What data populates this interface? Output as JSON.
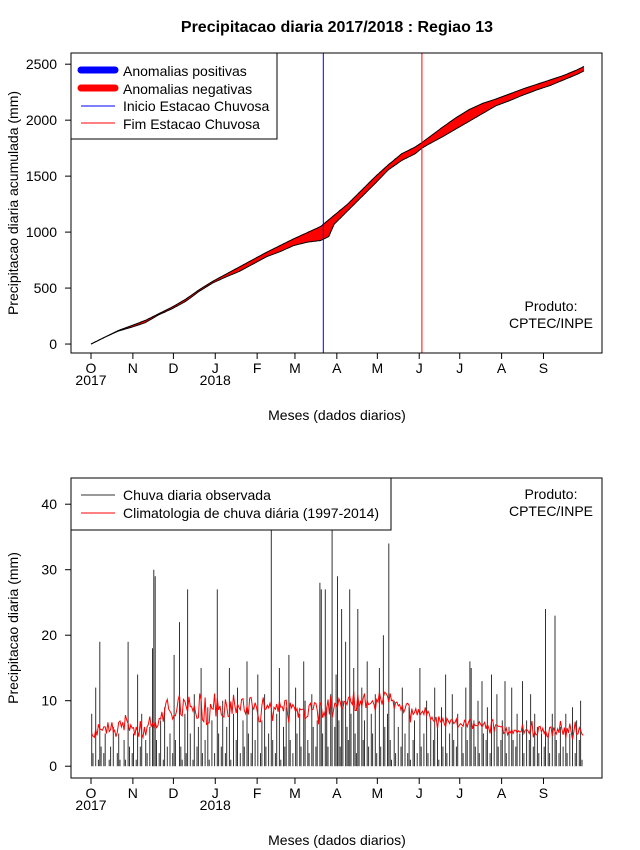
{
  "chart_data": [
    {
      "type": "area",
      "title": "Precipitacao diaria 2017/2018 : Regiao 13",
      "xlabel": "Meses (dados diarios)",
      "ylabel": "Precipitacao diaria acumulada (mm)",
      "x_tick_labels": [
        "O",
        "N",
        "D",
        "J",
        "F",
        "M",
        "A",
        "M",
        "J",
        "J",
        "A",
        "S"
      ],
      "year_labels": [
        "2017",
        "2018"
      ],
      "y_ticks": [
        0,
        500,
        1000,
        1500,
        2000,
        2500
      ],
      "ylim": [
        -80,
        2600
      ],
      "days_total": 365,
      "month_start_days": [
        0,
        31,
        61,
        92,
        123,
        151,
        182,
        212,
        243,
        273,
        304,
        335
      ],
      "legend": [
        {
          "label": "Anomalias positivas",
          "color": "#0000ff",
          "kind": "thick"
        },
        {
          "label": "Anomalias negativas",
          "color": "#ff0000",
          "kind": "thick"
        },
        {
          "label": "Inicio Estacao Chuvosa",
          "color": "#0000ff",
          "kind": "thin"
        },
        {
          "label": "Fim Estacao Chuvosa",
          "color": "#ff0000",
          "kind": "thin"
        }
      ],
      "rainy_season_start_day": 172,
      "rainy_season_end_day": 245,
      "series_day": [
        0,
        10,
        20,
        30,
        40,
        50,
        60,
        70,
        80,
        90,
        100,
        110,
        120,
        130,
        140,
        150,
        160,
        170,
        176,
        180,
        190,
        200,
        210,
        220,
        230,
        240,
        245,
        250,
        260,
        270,
        280,
        290,
        300,
        310,
        320,
        330,
        340,
        350,
        360,
        365
      ],
      "observed_accumulated_mm": [
        0,
        60,
        115,
        150,
        190,
        260,
        315,
        380,
        470,
        545,
        600,
        650,
        715,
        780,
        825,
        880,
        910,
        925,
        960,
        1070,
        1190,
        1310,
        1430,
        1555,
        1640,
        1700,
        1750,
        1785,
        1850,
        1920,
        1990,
        2060,
        2130,
        2175,
        2225,
        2270,
        2310,
        2360,
        2410,
        2440
      ],
      "climatology_accumulated_mm": [
        0,
        60,
        120,
        165,
        210,
        270,
        330,
        400,
        485,
        560,
        625,
        690,
        755,
        820,
        880,
        940,
        995,
        1050,
        1110,
        1150,
        1250,
        1370,
        1490,
        1600,
        1700,
        1760,
        1800,
        1845,
        1935,
        2020,
        2095,
        2150,
        2190,
        2235,
        2280,
        2320,
        2360,
        2400,
        2450,
        2480
      ],
      "producer": [
        "Produto:",
        "CPTEC/INPE"
      ]
    },
    {
      "type": "bar",
      "title": "",
      "xlabel": "Meses (dados diarios)",
      "ylabel": "Precipitacao diaria (mm)",
      "x_tick_labels": [
        "O",
        "N",
        "D",
        "J",
        "F",
        "M",
        "A",
        "M",
        "J",
        "J",
        "A",
        "S"
      ],
      "year_labels": [
        "2017",
        "2018"
      ],
      "y_ticks": [
        0,
        10,
        20,
        30,
        40
      ],
      "ylim": [
        -1.8,
        44
      ],
      "days_total": 365,
      "month_start_days": [
        0,
        31,
        61,
        92,
        123,
        151,
        182,
        212,
        243,
        273,
        304,
        335
      ],
      "legend": [
        {
          "label": "Chuva diaria observada",
          "color": "#000000",
          "kind": "thin"
        },
        {
          "label": "Climatologia de chuva diária (1997-2014)",
          "color": "#ff0000",
          "kind": "thin"
        }
      ],
      "observed_daily_mm": [
        8,
        2,
        0,
        12,
        0,
        1,
        19,
        3,
        0,
        2,
        5,
        0,
        0,
        1,
        3,
        0,
        6,
        0,
        0,
        2,
        5,
        1,
        0,
        0,
        4,
        1,
        0,
        19,
        3,
        0,
        2,
        5,
        0,
        1,
        14,
        0,
        3,
        8,
        0,
        0,
        4,
        2,
        0,
        6,
        0,
        18,
        30,
        29,
        4,
        0,
        2,
        7,
        0,
        1,
        9,
        0,
        3,
        0,
        5,
        0,
        2,
        17,
        4,
        0,
        0,
        22,
        3,
        1,
        0,
        8,
        2,
        27,
        0,
        5,
        0,
        1,
        11,
        0,
        3,
        6,
        0,
        15,
        2,
        0,
        4,
        0,
        9,
        1,
        0,
        7,
        0,
        2,
        0,
        27,
        5,
        0,
        3,
        10,
        0,
        2,
        6,
        0,
        15,
        1,
        0,
        8,
        0,
        4,
        12,
        0,
        2,
        0,
        7,
        3,
        0,
        16,
        5,
        0,
        2,
        9,
        0,
        4,
        0,
        14,
        0,
        2,
        7,
        0,
        11,
        3,
        0,
        5,
        0,
        36,
        4,
        0,
        2,
        8,
        0,
        15,
        1,
        0,
        6,
        3,
        9,
        0,
        17,
        4,
        0,
        2,
        0,
        12,
        5,
        0,
        8,
        3,
        0,
        16,
        10,
        0,
        4,
        2,
        0,
        11,
        6,
        0,
        3,
        7,
        0,
        28,
        27,
        5,
        0,
        27,
        9,
        3,
        0,
        11,
        36,
        0,
        6,
        14,
        29,
        7,
        3,
        24,
        10,
        0,
        19,
        6,
        4,
        27,
        8,
        0,
        15,
        5,
        2,
        24,
        9,
        0,
        12,
        4,
        7,
        0,
        16,
        3,
        0,
        8,
        5,
        0,
        11,
        2,
        0,
        15,
        3,
        0,
        20,
        6,
        0,
        8,
        34,
        4,
        1,
        0,
        10,
        2,
        0,
        6,
        0,
        3,
        12,
        0,
        5,
        0,
        2,
        9,
        1,
        0,
        4,
        7,
        0,
        2,
        0,
        15,
        3,
        0,
        5,
        0,
        10,
        2,
        0,
        7,
        0,
        4,
        12,
        0,
        6,
        1,
        0,
        9,
        3,
        0,
        14,
        2,
        0,
        5,
        0,
        11,
        4,
        0,
        3,
        8,
        0,
        0,
        6,
        2,
        0,
        12,
        4,
        0,
        16,
        15,
        0,
        7,
        3,
        0,
        10,
        2,
        0,
        13,
        5,
        0,
        4,
        9,
        0,
        2,
        14,
        0,
        6,
        0,
        11,
        3,
        0,
        4,
        7,
        0,
        13,
        2,
        0,
        6,
        0,
        12,
        4,
        0,
        3,
        8,
        0,
        5,
        0,
        13,
        2,
        0,
        7,
        0,
        4,
        11,
        0,
        3,
        8,
        0,
        6,
        2,
        0,
        5,
        0,
        3,
        24,
        0,
        5,
        2,
        0,
        8,
        0,
        23,
        4,
        0,
        2,
        6,
        0,
        3,
        0,
        8,
        2,
        0,
        5,
        0,
        9,
        0,
        2,
        7,
        0,
        4,
        10,
        1,
        0
      ],
      "climatology_daily_mm": [
        5.0,
        4.6,
        4.4,
        5.6,
        4.7,
        6.4,
        5.7,
        5.6,
        5.5,
        6.0,
        6.0,
        5.0,
        6.7,
        5.3,
        5.6,
        6.7,
        5.2,
        5.5,
        4.5,
        5.2,
        6.7,
        6.9,
        6.0,
        6.7,
        5.5,
        7.8,
        7.0,
        6.5,
        5.4,
        6.3,
        5.8,
        5.9,
        4.7,
        6.0,
        5.3,
        4.5,
        6.9,
        4.9,
        4.4,
        6.0,
        4.7,
        6.0,
        6.4,
        7.6,
        6.1,
        6.5,
        5.8,
        6.8,
        5.9,
        6.2,
        7.3,
        7.2,
        8.3,
        6.8,
        8.5,
        9.7,
        10.2,
        8.7,
        8.4,
        8.0,
        7.2,
        7.8,
        7.7,
        8.6,
        10.1,
        10.9,
        7.9,
        7.7,
        10.2,
        9.9,
        9.1,
        8.3,
        10.6,
        9.1,
        9.1,
        8.4,
        9.2,
        8.1,
        7.3,
        7.4,
        11.1,
        10.1,
        7.1,
        6.8,
        10.5,
        6.4,
        6.6,
        6.6,
        9.5,
        8.8,
        8.7,
        11.1,
        7.6,
        10.4,
        8.6,
        9.2,
        7.9,
        7.6,
        7.5,
        10.2,
        9.2,
        7.6,
        7.6,
        9.9,
        8.0,
        10.9,
        9.3,
        8.1,
        9.5,
        9.0,
        8.6,
        10.2,
        10.3,
        8.5,
        8.0,
        9.2,
        7.9,
        10.4,
        10.5,
        9.1,
        8.7,
        9.7,
        9.0,
        7.9,
        6.8,
        6.8,
        9.3,
        10.5,
        8.7,
        8.7,
        9.3,
        8.9,
        9.6,
        8.8,
        6.9,
        9.0,
        8.7,
        9.5,
        8.3,
        9.9,
        9.0,
        9.1,
        8.4,
        10.0,
        10.1,
        8.0,
        6.6,
        9.7,
        8.9,
        9.4,
        9.0,
        8.3,
        8.8,
        7.4,
        8.8,
        8.6,
        8.7,
        8.7,
        7.2,
        7.5,
        7.6,
        9.3,
        9.6,
        8.6,
        8.7,
        9.7,
        9.6,
        8.6,
        6.4,
        9.8,
        9.3,
        7.4,
        8.2,
        7.5,
        8.7,
        10.2,
        7.9,
        10.7,
        7.4,
        8.4,
        9.6,
        9.5,
        9.0,
        10.3,
        9.8,
        8.8,
        8.9,
        9.9,
        9.9,
        9.4,
        10.4,
        10.7,
        9.8,
        9.4,
        11.4,
        8.5,
        8.5,
        10.9,
        9.0,
        10.0,
        9.1,
        10.4,
        11.1,
        8.9,
        10.0,
        9.4,
        9.5,
        9.7,
        10.0,
        9.4,
        8.5,
        10.2,
        9.8,
        11.3,
        10.3,
        9.4,
        10.6,
        11.3,
        11.1,
        10.7,
        9.8,
        11.1,
        10.0,
        10.1,
        8.8,
        9.7,
        9.8,
        9.2,
        9.4,
        8.6,
        9.3,
        8.2,
        8.7,
        9.5,
        9.6,
        9.3,
        6.7,
        8.8,
        7.9,
        8.2,
        8.8,
        7.8,
        8.7,
        7.8,
        8.1,
        8.4,
        7.9,
        9.0,
        7.8,
        8.4,
        8.0,
        7.1,
        7.5,
        6.9,
        6.9,
        7.5,
        5.7,
        7.6,
        6.9,
        6.6,
        7.3,
        6.5,
        6.0,
        7.3,
        6.9,
        6.5,
        7.1,
        7.1,
        6.5,
        6.7,
        7.2,
        5.9,
        6.2,
        6.5,
        6.3,
        6.1,
        7.0,
        6.7,
        6.0,
        6.7,
        7.2,
        7.0,
        5.7,
        6.5,
        6.2,
        6.2,
        6.2,
        6.8,
        6.4,
        6.0,
        6.4,
        6.7,
        5.7,
        6.4,
        5.8,
        5.0,
        6.9,
        7.1,
        5.3,
        6.3,
        6.3,
        6.1,
        6.1,
        6.0,
        6.1,
        5.0,
        5.2,
        5.8,
        4.8,
        5.3,
        5.1,
        5.6,
        5.0,
        5.5,
        5.5,
        5.1,
        5.4,
        5.2,
        5.3,
        6.4,
        5.0,
        5.5,
        5.6,
        5.4,
        5.0,
        5.8,
        6.9,
        4.4,
        5.3,
        4.8,
        4.8,
        6.0,
        6.1,
        5.2,
        5.8,
        5.0,
        5.5,
        4.6,
        4.4,
        5.9,
        6.0,
        4.6,
        5.9,
        5.3,
        4.9,
        5.7,
        5.1,
        6.9,
        5.8,
        4.8,
        5.9,
        4.3,
        5.8,
        5.1,
        6.5,
        5.2,
        4.1,
        5.3,
        6.8,
        4.9,
        4.9,
        5.9,
        5.5,
        4.9,
        4.7
      ],
      "producer": [
        "Produto:",
        "CPTEC/INPE"
      ]
    }
  ]
}
